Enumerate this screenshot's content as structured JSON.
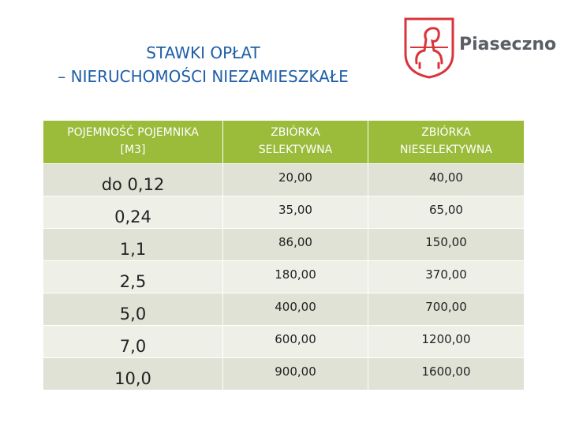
{
  "header": {
    "title_lines": [
      "STAWKI OPŁAT",
      "– NIERUCHOMOŚCI  NIEZAMIESZKAŁE"
    ],
    "logo_text": "Piaseczno"
  },
  "table": {
    "columns": [
      [
        "POJEMNOŚĆ POJEMNIKA",
        "[M3]"
      ],
      [
        "ZBIÓRKA",
        "SELEKTYWNA"
      ],
      [
        "ZBIÓRKA",
        "NIESELEKTYWNA"
      ]
    ],
    "rows": [
      [
        "do 0,12",
        "20,00",
        "40,00"
      ],
      [
        "0,24",
        "35,00",
        "65,00"
      ],
      [
        "1,1",
        "86,00",
        "150,00"
      ],
      [
        "2,5",
        "180,00",
        "370,00"
      ],
      [
        "5,0",
        "400,00",
        "700,00"
      ],
      [
        "7,0",
        "600,00",
        "1200,00"
      ],
      [
        "10,0",
        "900,00",
        "1600,00"
      ]
    ]
  }
}
